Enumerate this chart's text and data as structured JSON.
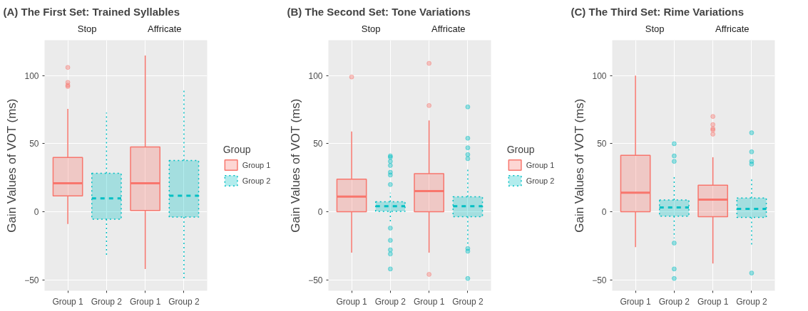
{
  "chart_data": [
    {
      "type": "box",
      "title": "(A) The First Set: Trained Syllables",
      "annotations": [
        "Stop",
        "Affricate"
      ],
      "ylabel": "Gain Values of VOT (ms)",
      "categories": [
        "Group 1",
        "Group 2",
        "Group 1",
        "Group 2"
      ],
      "ylim": [
        -58,
        126
      ],
      "yticks": [
        -50,
        0,
        50,
        100
      ],
      "grid": true,
      "legend": "right",
      "legend_title": "Group",
      "series": [
        {
          "name": "Group 1",
          "color": "#f8766d",
          "line_style": "solid",
          "boxes": [
            {
              "low": -9,
              "q1": 11.6,
              "median": 20.9,
              "q3": 39.9,
              "high": 75.5,
              "outliers": [
                106,
                95,
                93,
                92
              ]
            },
            null,
            {
              "low": -42,
              "q1": 0.9,
              "median": 20.9,
              "q3": 47.6,
              "high": 114.7
            },
            null
          ]
        },
        {
          "name": "Group 2",
          "color": "#00bfc4",
          "line_style": "dotted",
          "boxes": [
            null,
            {
              "low": -33,
              "q1": -5.5,
              "median": 9.8,
              "q3": 28.3,
              "high": 72.8
            },
            null,
            {
              "low": -49,
              "q1": -3.9,
              "median": 11.8,
              "q3": 37.7,
              "high": 90.8
            }
          ]
        }
      ]
    },
    {
      "type": "box",
      "title": "(B) The Second Set: Tone Variations",
      "annotations": [
        "Stop",
        "Affricate"
      ],
      "ylabel": "Gain Values of VOT (ms)",
      "categories": [
        "Group 1",
        "Group 2",
        "Group 1",
        "Group 2"
      ],
      "ylim": [
        -58,
        126
      ],
      "yticks": [
        -50,
        0,
        50,
        100
      ],
      "grid": true,
      "legend": "right",
      "legend_title": "Group",
      "series": [
        {
          "name": "Group 1",
          "color": "#f8766d",
          "line_style": "solid",
          "boxes": [
            {
              "low": -30,
              "q1": 0,
              "median": 11.1,
              "q3": 24,
              "high": 58.9,
              "outliers": [
                99
              ]
            },
            null,
            {
              "low": -30,
              "q1": 0,
              "median": 15.2,
              "q3": 28,
              "high": 67,
              "outliers": [
                109,
                78,
                -46
              ]
            },
            null
          ]
        },
        {
          "name": "Group 2",
          "color": "#00bfc4",
          "line_style": "dotted",
          "boxes": [
            null,
            {
              "low": -9,
              "q1": 0.3,
              "median": 4.1,
              "q3": 7.4,
              "high": 14,
              "outliers": [
                41,
                40,
                37,
                34,
                29,
                27,
                20,
                -12,
                -21,
                -28,
                -31,
                -42
              ]
            },
            null,
            {
              "low": -25,
              "q1": -3.6,
              "median": 4.1,
              "q3": 11,
              "high": 31,
              "outliers": [
                77,
                54,
                47,
                42,
                39,
                -27,
                -29,
                -49
              ]
            }
          ]
        }
      ]
    },
    {
      "type": "box",
      "title": "(C) The Third Set: Rime Variations",
      "annotations": [
        "Stop",
        "Affricate"
      ],
      "ylabel": "Gain Values of VOT (ms)",
      "categories": [
        "Group 1",
        "Group 2",
        "Group 1",
        "Group 2"
      ],
      "ylim": [
        -58,
        126
      ],
      "yticks": [
        -50,
        0,
        50,
        100
      ],
      "grid": true,
      "series": [
        {
          "color": "#f8766d",
          "line_style": "solid",
          "boxes": [
            {
              "low": -26,
              "q1": 0,
              "median": 14,
              "q3": 41.4,
              "high": 100
            },
            null,
            {
              "low": -38,
              "q1": -3.6,
              "median": 8.9,
              "q3": 19.5,
              "high": 40,
              "outliers": [
                70,
                64,
                61,
                60,
                57
              ]
            },
            null
          ]
        },
        {
          "color": "#00bfc4",
          "line_style": "dotted",
          "boxes": [
            null,
            {
              "low": -19.5,
              "q1": -3.3,
              "median": 3.1,
              "q3": 8.7,
              "high": 26.7,
              "outliers": [
                50,
                41,
                37,
                -23,
                -42,
                -49
              ]
            },
            null,
            {
              "low": -24,
              "q1": -4.1,
              "median": 2.1,
              "q3": 10.1,
              "high": 23.8,
              "outliers": [
                58,
                44,
                37,
                35,
                -45
              ]
            }
          ]
        }
      ]
    }
  ]
}
